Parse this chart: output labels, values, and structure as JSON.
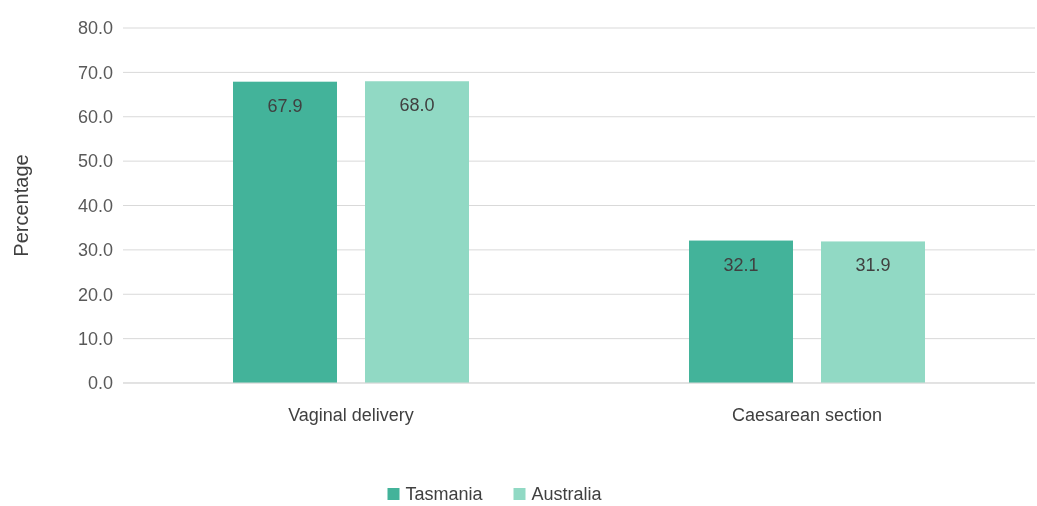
{
  "chart_data": {
    "type": "bar",
    "ylabel": "Percentage",
    "categories": [
      "Vaginal delivery",
      "Caesarean section"
    ],
    "series": [
      {
        "name": "Tasmania",
        "color": "#43b39a",
        "values": [
          67.9,
          32.1
        ],
        "value_labels": [
          "67.9",
          "32.1"
        ]
      },
      {
        "name": "Australia",
        "color": "#91d9c4",
        "values": [
          68.0,
          31.9
        ],
        "value_labels": [
          "68.0",
          "31.9"
        ]
      }
    ],
    "ylim": [
      0,
      80
    ],
    "yticks": [
      {
        "value": 0,
        "label": "0.0"
      },
      {
        "value": 10,
        "label": "10.0"
      },
      {
        "value": 20,
        "label": "20.0"
      },
      {
        "value": 30,
        "label": "30.0"
      },
      {
        "value": 40,
        "label": "40.0"
      },
      {
        "value": 50,
        "label": "50.0"
      },
      {
        "value": 60,
        "label": "60.0"
      },
      {
        "value": 70,
        "label": "70.0"
      },
      {
        "value": 80,
        "label": "80.0"
      }
    ],
    "grid": "y",
    "legend": "bottom"
  }
}
